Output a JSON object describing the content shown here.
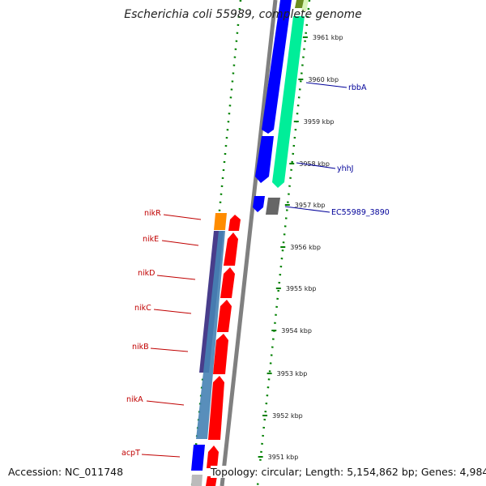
{
  "title": "Escherichia coli 55989, complete genome",
  "footer": {
    "accession": "Accession: NC_011748",
    "topology": "Topology: circular; Length: 5,154,862 bp; Genes: 4,984"
  },
  "colors": {
    "backbone": "#808080",
    "dotted_ring": "#008000",
    "forward_cds": "#ff0000",
    "reverse_cds": "#0000ff",
    "accent_cds": "#00ee99",
    "label_left": "#c00000",
    "label_right": "#000099"
  },
  "ticks": [
    {
      "label": "3961 kbp"
    },
    {
      "label": "3960 kbp"
    },
    {
      "label": "3959 kbp"
    },
    {
      "label": "3958 kbp"
    },
    {
      "label": "3957 kbp"
    },
    {
      "label": "3956 kbp"
    },
    {
      "label": "3955 kbp"
    },
    {
      "label": "3954 kbp"
    },
    {
      "label": "3953 kbp"
    },
    {
      "label": "3952 kbp"
    },
    {
      "label": "3951 kbp"
    }
  ],
  "genes_left": [
    {
      "name": "nikR"
    },
    {
      "name": "nikE"
    },
    {
      "name": "nikD"
    },
    {
      "name": "nikC"
    },
    {
      "name": "nikB"
    },
    {
      "name": "nikA"
    },
    {
      "name": "acpT"
    }
  ],
  "genes_right": [
    {
      "name": "rbbA"
    },
    {
      "name": "yhhJ"
    },
    {
      "name": "EC55989_3890"
    }
  ]
}
